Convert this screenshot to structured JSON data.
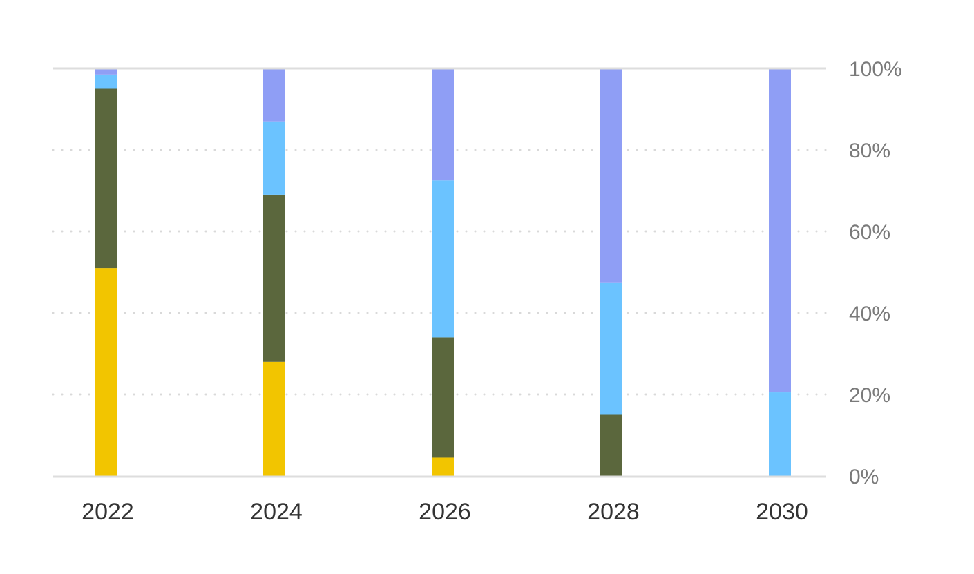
{
  "chart_data": {
    "type": "bar",
    "stacked": true,
    "orientation": "vertical",
    "categories": [
      "2022",
      "2024",
      "2026",
      "2028",
      "2030"
    ],
    "series": [
      {
        "color": "#F2C500",
        "values": [
          51,
          28,
          4.5,
          0,
          0
        ]
      },
      {
        "color": "#5B673D",
        "values": [
          44,
          41,
          29.5,
          15,
          0
        ]
      },
      {
        "color": "#6BC3FF",
        "values": [
          3.5,
          18,
          38.5,
          32.5,
          20.5
        ]
      },
      {
        "color": "#8F9EF5",
        "values": [
          1.5,
          13,
          27.5,
          52.5,
          79.5
        ]
      }
    ],
    "y_ticks": [
      "0%",
      "20%",
      "40%",
      "60%",
      "80%",
      "100%"
    ],
    "y_tick_values": [
      0,
      20,
      40,
      60,
      80,
      100
    ],
    "ylim": [
      0,
      100
    ],
    "y_axis_side": "right",
    "grid": "dotted horizontal",
    "colors": {
      "grid": "#d9d9d9",
      "axis": "#dddddd",
      "tick_text": "#7a7a7a",
      "category_text": "#333333"
    }
  }
}
